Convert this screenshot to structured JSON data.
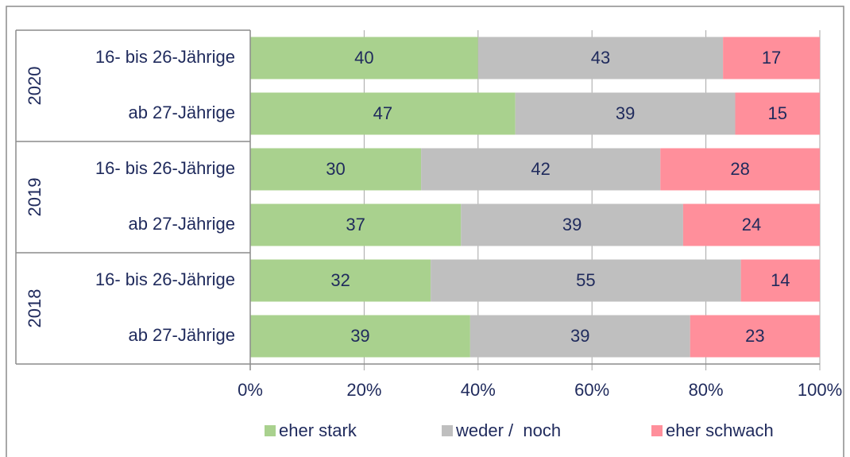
{
  "chart_data": {
    "type": "bar",
    "orientation": "horizontal",
    "stacked": "percent",
    "groups": [
      {
        "label": "2020",
        "rows": [
          0,
          1
        ]
      },
      {
        "label": "2019",
        "rows": [
          2,
          3
        ]
      },
      {
        "label": "2018",
        "rows": [
          4,
          5
        ]
      }
    ],
    "categories": [
      "16- bis 26-Jährige",
      "ab 27-Jährige",
      "16- bis 26-Jährige",
      "ab 27-Jährige",
      "16- bis 26-Jährige",
      "ab 27-Jährige"
    ],
    "series": [
      {
        "name": "eher stark",
        "color": "#a9d18e",
        "values": [
          40,
          47,
          30,
          37,
          32,
          39
        ]
      },
      {
        "name": "weder /  noch",
        "color": "#bfbfbf",
        "values": [
          43,
          39,
          42,
          39,
          55,
          39
        ]
      },
      {
        "name": "eher schwach",
        "color": "#ff8f9b",
        "values": [
          17,
          15,
          28,
          24,
          14,
          23
        ]
      }
    ],
    "xlim": [
      0,
      100
    ],
    "xticks": [
      {
        "value": 0,
        "label": "0%"
      },
      {
        "value": 20,
        "label": "20%"
      },
      {
        "value": 40,
        "label": "40%"
      },
      {
        "value": 60,
        "label": "60%"
      },
      {
        "value": 80,
        "label": "80%"
      },
      {
        "value": 100,
        "label": "100%"
      }
    ],
    "grid": true,
    "legend": "bottom"
  }
}
